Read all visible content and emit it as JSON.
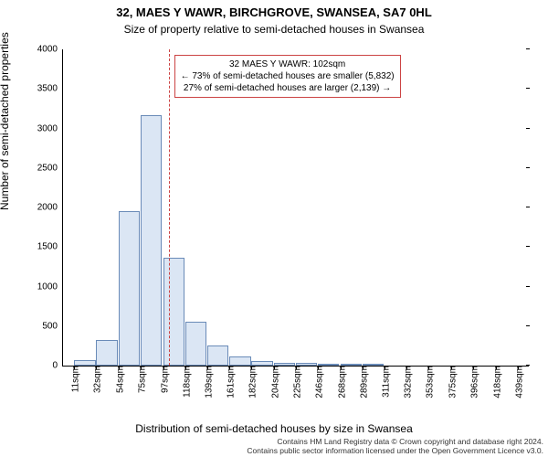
{
  "title": "32, MAES Y WAWR, BIRCHGROVE, SWANSEA, SA7 0HL",
  "subtitle": "Size of property relative to semi-detached houses in Swansea",
  "chart": {
    "type": "histogram",
    "ylabel": "Number of semi-detached properties",
    "xlabel": "Distribution of semi-detached houses by size in Swansea",
    "ylim": [
      0,
      4000
    ],
    "ytick_step": 500,
    "yticks": [
      0,
      500,
      1000,
      1500,
      2000,
      2500,
      3000,
      3500,
      4000
    ],
    "xticks": [
      "11sqm",
      "32sqm",
      "54sqm",
      "75sqm",
      "97sqm",
      "118sqm",
      "139sqm",
      "161sqm",
      "182sqm",
      "204sqm",
      "225sqm",
      "246sqm",
      "268sqm",
      "289sqm",
      "311sqm",
      "332sqm",
      "353sqm",
      "375sqm",
      "396sqm",
      "418sqm",
      "439sqm"
    ],
    "xtick_values": [
      11,
      32,
      54,
      75,
      97,
      118,
      139,
      161,
      182,
      204,
      225,
      246,
      268,
      289,
      311,
      332,
      353,
      375,
      396,
      418,
      439
    ],
    "x_range": [
      0,
      450
    ],
    "bin_width": 21.4,
    "bar_fill": "#dbe6f4",
    "bar_stroke": "#6a8bb8",
    "background_color": "#ffffff",
    "bins": [
      {
        "x": 11,
        "count": 70
      },
      {
        "x": 32,
        "count": 320
      },
      {
        "x": 54,
        "count": 1950
      },
      {
        "x": 75,
        "count": 3170
      },
      {
        "x": 97,
        "count": 1370
      },
      {
        "x": 118,
        "count": 560
      },
      {
        "x": 139,
        "count": 260
      },
      {
        "x": 161,
        "count": 120
      },
      {
        "x": 182,
        "count": 60
      },
      {
        "x": 204,
        "count": 40
      },
      {
        "x": 225,
        "count": 30
      },
      {
        "x": 246,
        "count": 15
      },
      {
        "x": 268,
        "count": 25
      },
      {
        "x": 289,
        "count": 5
      },
      {
        "x": 311,
        "count": 0
      },
      {
        "x": 332,
        "count": 0
      },
      {
        "x": 353,
        "count": 0
      },
      {
        "x": 375,
        "count": 0
      },
      {
        "x": 396,
        "count": 0
      },
      {
        "x": 418,
        "count": 0
      },
      {
        "x": 439,
        "count": 0
      }
    ],
    "marker_line": {
      "x": 102,
      "color": "#cc4444"
    },
    "annotation": {
      "line1": "32 MAES Y WAWR: 102sqm",
      "line2": "← 73% of semi-detached houses are smaller (5,832)",
      "line3": "27% of semi-detached houses are larger (2,139) →",
      "border_color": "#cc4444"
    }
  },
  "footer_line1": "Contains HM Land Registry data © Crown copyright and database right 2024.",
  "footer_line2": "Contains public sector information licensed under the Open Government Licence v3.0."
}
